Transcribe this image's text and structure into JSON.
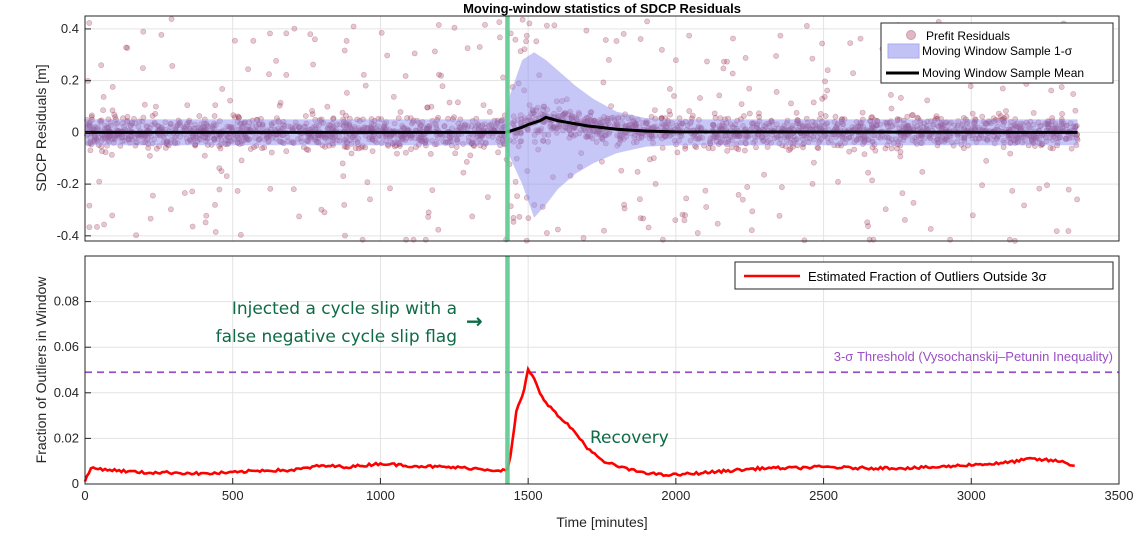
{
  "chart_data": [
    {
      "type": "scatter",
      "title": "Moving-window statistics of SDCP Residuals",
      "xlabel": "",
      "ylabel": "SDCP Residuals [m]",
      "xlim": [
        0,
        3500
      ],
      "ylim": [
        -0.42,
        0.45
      ],
      "yticks": [
        "0.4",
        "0.2",
        "0",
        "-0.2",
        "-0.4"
      ],
      "ytick_values": [
        0.4,
        0.2,
        0,
        -0.2,
        -0.4
      ],
      "grid": true,
      "legend_position": "top-right",
      "series": [
        {
          "name": "Prefit Residuals",
          "kind": "scatter",
          "color": "#a23a5a",
          "x_range": [
            0,
            3360
          ],
          "typical_spread": 0.05
        },
        {
          "name": "Moving Window Sample 1-σ",
          "kind": "band",
          "color": "#8f8ff0",
          "x": [
            0,
            1420,
            1440,
            1480,
            1520,
            1560,
            1600,
            1660,
            1720,
            1800,
            1900,
            2000,
            3360
          ],
          "upper": [
            0.05,
            0.05,
            0.15,
            0.28,
            0.31,
            0.28,
            0.24,
            0.18,
            0.13,
            0.08,
            0.055,
            0.05,
            0.05
          ],
          "lower": [
            -0.05,
            -0.05,
            -0.1,
            -0.2,
            -0.33,
            -0.28,
            -0.22,
            -0.16,
            -0.12,
            -0.08,
            -0.055,
            -0.05,
            -0.05
          ]
        },
        {
          "name": "Moving Window Sample Mean",
          "kind": "line",
          "color": "#000000",
          "x": [
            0,
            1420,
            1440,
            1480,
            1500,
            1540,
            1560,
            1600,
            1700,
            1800,
            1900,
            2000,
            3360
          ],
          "values": [
            0,
            0,
            0.005,
            0.02,
            0.03,
            0.045,
            0.058,
            0.045,
            0.025,
            0.012,
            0.005,
            0.002,
            0
          ]
        }
      ],
      "event_line": {
        "x": 1430,
        "color": "#5cc98f"
      }
    },
    {
      "type": "line",
      "title": "",
      "xlabel": "Time [minutes]",
      "ylabel": "Fraction of Outliers in Window",
      "xlim": [
        0,
        3500
      ],
      "ylim": [
        0,
        0.1
      ],
      "xticks": [
        "0",
        "500",
        "1000",
        "1500",
        "2000",
        "2500",
        "3000",
        "3500"
      ],
      "xtick_values": [
        0,
        500,
        1000,
        1500,
        2000,
        2500,
        3000,
        3500
      ],
      "yticks": [
        "0.08",
        "0.06",
        "0.04",
        "0.02",
        "0"
      ],
      "ytick_values": [
        0.08,
        0.06,
        0.04,
        0.02,
        0
      ],
      "grid": true,
      "legend_position": "top-right",
      "series": [
        {
          "name": "Estimated Fraction of Outliers Outside 3σ",
          "color": "#ff0000",
          "x": [
            0,
            20,
            100,
            200,
            300,
            400,
            500,
            600,
            700,
            800,
            900,
            1000,
            1100,
            1200,
            1300,
            1400,
            1430,
            1440,
            1460,
            1480,
            1500,
            1520,
            1540,
            1560,
            1600,
            1650,
            1700,
            1750,
            1800,
            1850,
            1900,
            1950,
            2000,
            2100,
            2200,
            2300,
            2400,
            2500,
            2600,
            2700,
            2800,
            2900,
            3000,
            3100,
            3200,
            3300,
            3350
          ],
          "values": [
            0.001,
            0.007,
            0.006,
            0.005,
            0.005,
            0.0045,
            0.005,
            0.006,
            0.006,
            0.008,
            0.0075,
            0.009,
            0.008,
            0.0075,
            0.007,
            0.006,
            0.006,
            0.012,
            0.032,
            0.038,
            0.05,
            0.046,
            0.04,
            0.036,
            0.03,
            0.024,
            0.016,
            0.01,
            0.008,
            0.006,
            0.005,
            0.004,
            0.004,
            0.005,
            0.006,
            0.007,
            0.007,
            0.0075,
            0.007,
            0.007,
            0.007,
            0.0075,
            0.0085,
            0.009,
            0.011,
            0.01,
            0.008
          ]
        }
      ],
      "threshold": {
        "value": 0.049,
        "label": "3-σ Threshold (Vysochanskij–Petunin Inequality)",
        "color": "#9a4fc4"
      },
      "event_line": {
        "x": 1430,
        "color": "#5cc98f"
      },
      "annotations": [
        {
          "lines": [
            "Injected a cycle slip with a",
            "false negative cycle slip flag"
          ],
          "arrow": "→",
          "color": "#0d6b46"
        },
        {
          "text": "Recovery",
          "color": "#0d6b46"
        }
      ]
    }
  ]
}
